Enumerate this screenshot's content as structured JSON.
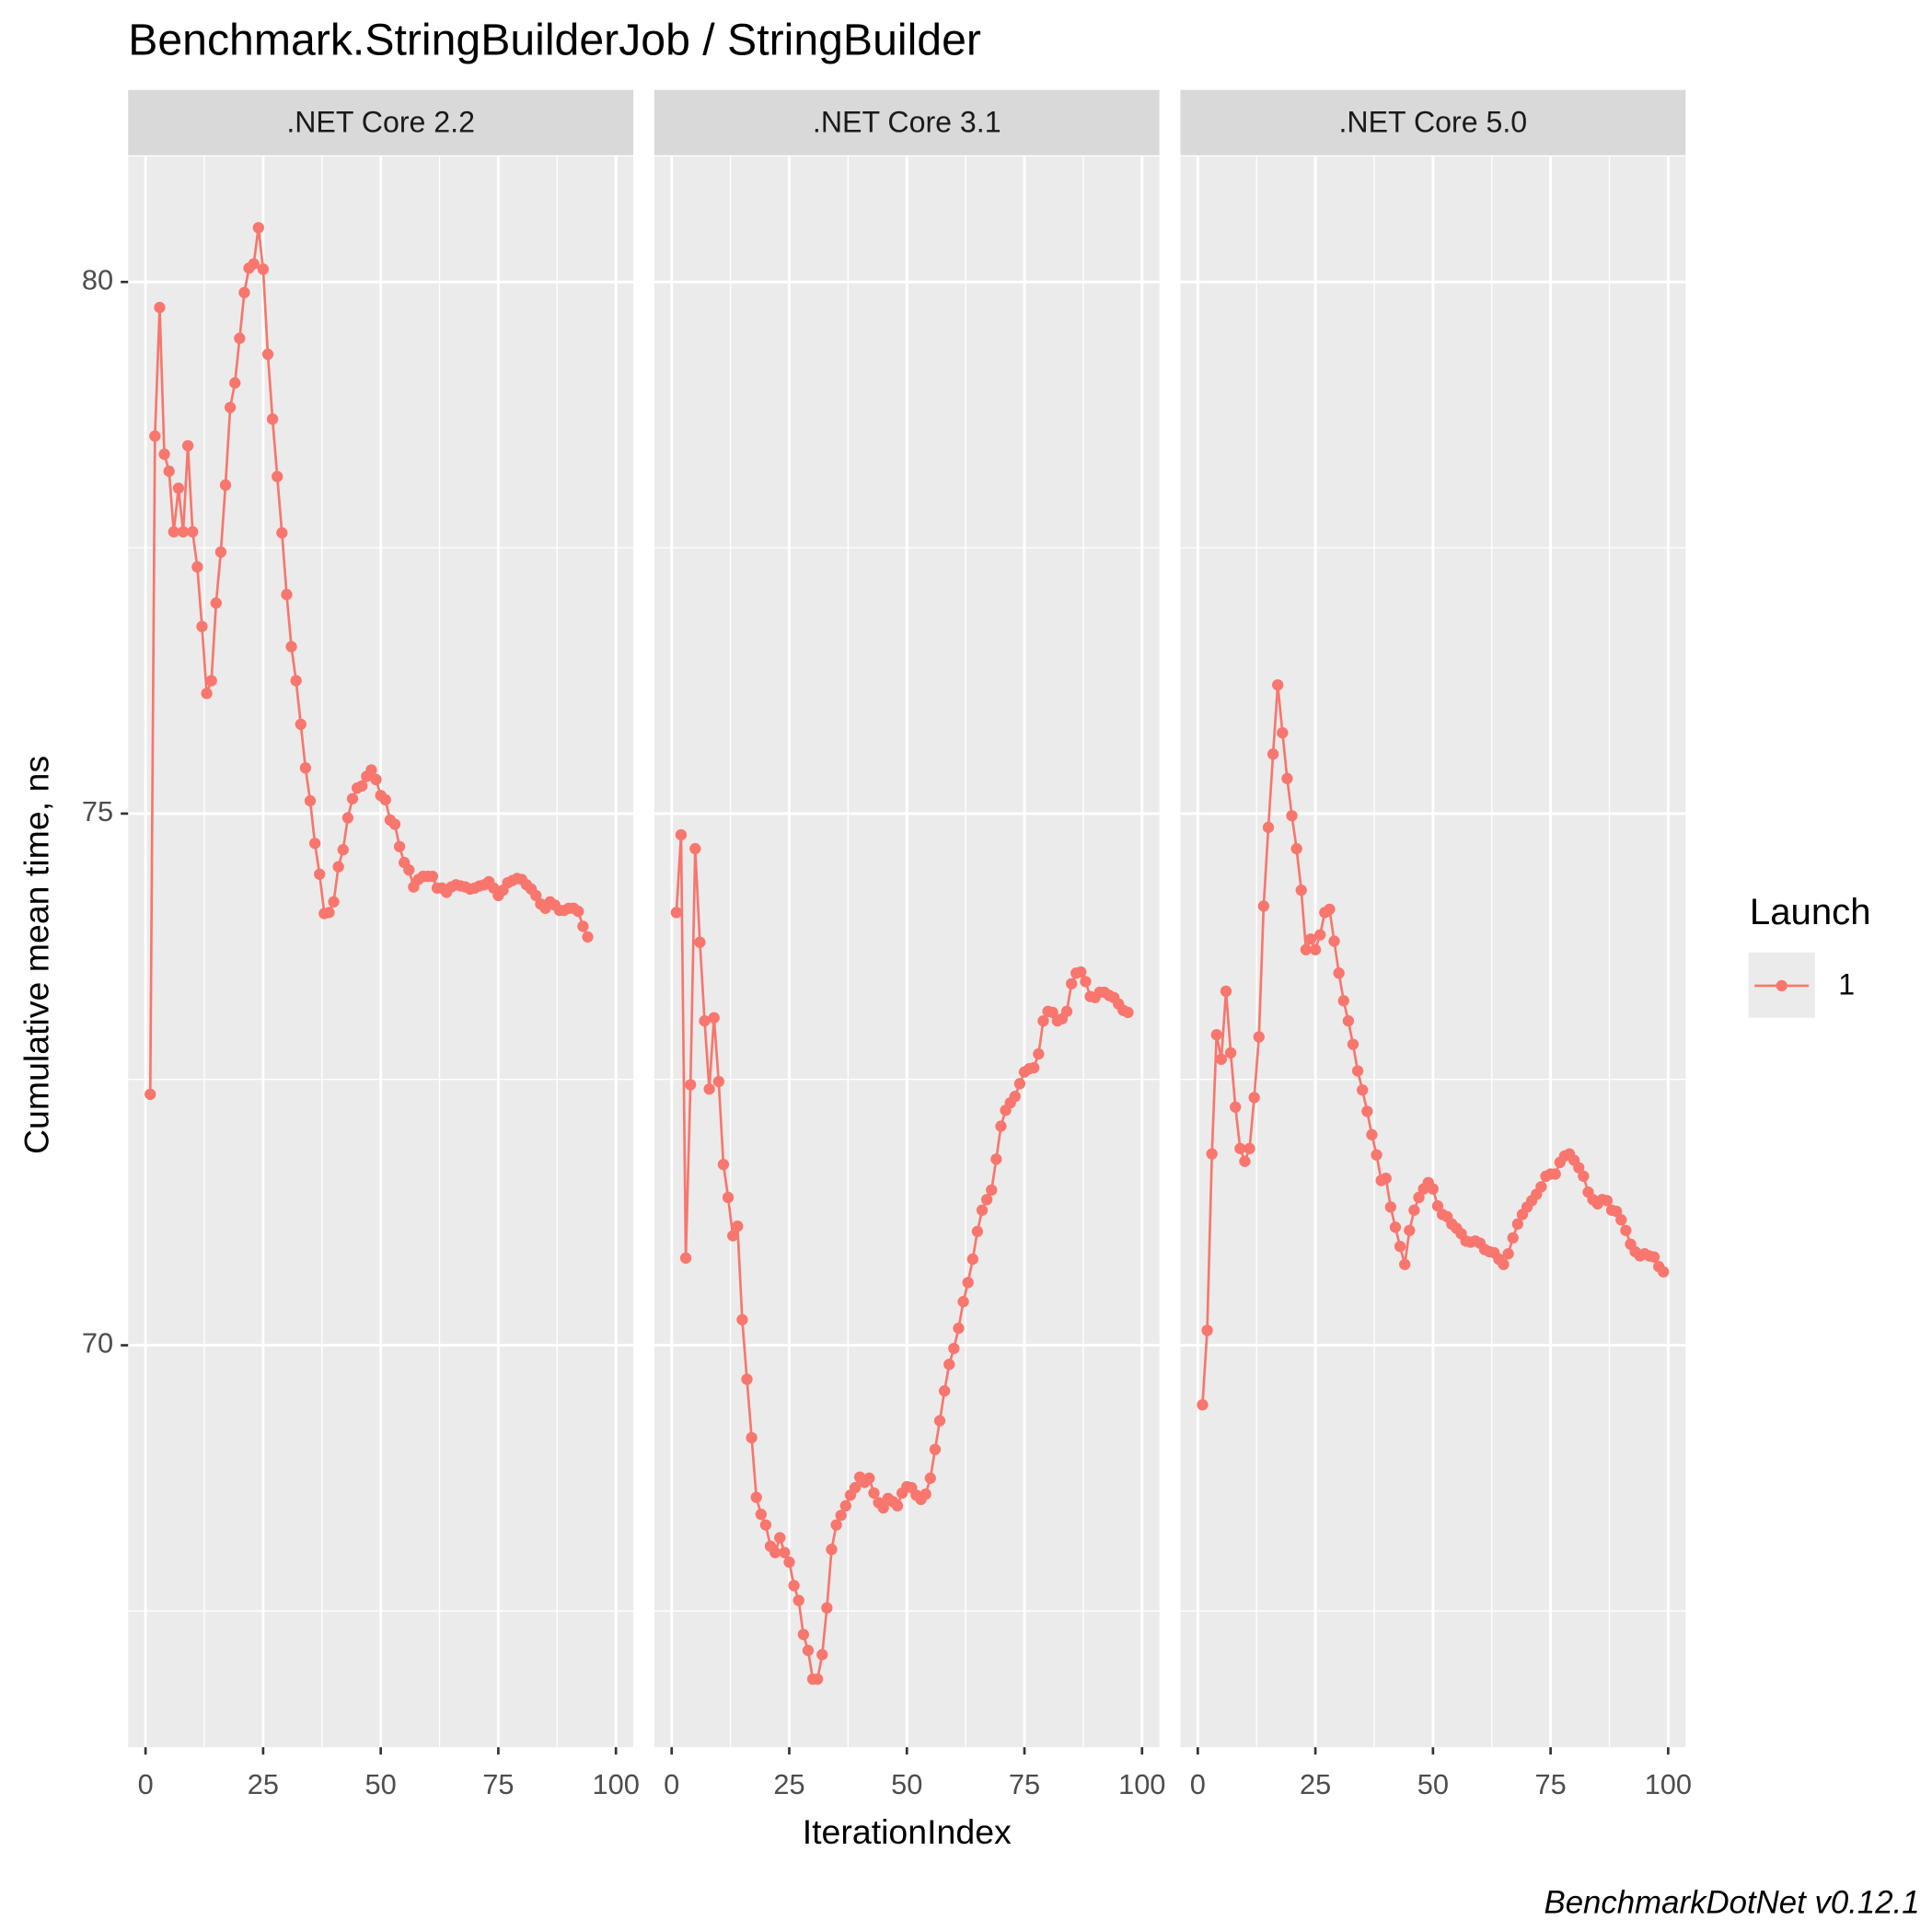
{
  "chart_data": {
    "type": "line",
    "title": "Benchmark.StringBuilderJob / StringBuilder",
    "x_label": "IterationIndex",
    "y_label": "Cumulative mean time, ns",
    "caption": "BenchmarkDotNet v0.12.1",
    "legend_title": "Launch",
    "xlim": [
      -3.7,
      103.7
    ],
    "xticks": [
      0,
      25,
      50,
      75,
      100
    ],
    "xminor": [
      12.5,
      37.5,
      62.5,
      87.5
    ],
    "ylim": [
      66.22,
      81.18
    ],
    "yticks": [
      70,
      75,
      80
    ],
    "yminor": [
      67.5,
      72.5,
      77.5
    ],
    "grid": true,
    "facets": [
      {
        "name": ".NET Core 2.2",
        "x": [
          1,
          2,
          3,
          4,
          5,
          6,
          7,
          8,
          9,
          10,
          11,
          12,
          13,
          14,
          15,
          16,
          17,
          18,
          19,
          20,
          21,
          22,
          23,
          24,
          25,
          26,
          27,
          28,
          29,
          30,
          31,
          32,
          33,
          34,
          35,
          36,
          37,
          38,
          39,
          40,
          41,
          42,
          43,
          44,
          45,
          46,
          47,
          48,
          49,
          50,
          51,
          52,
          53,
          54,
          55,
          56,
          57,
          58,
          59,
          60,
          61,
          62,
          63,
          64,
          65,
          66,
          67,
          68,
          69,
          70,
          71,
          72,
          73,
          74,
          75,
          76,
          77,
          78,
          79,
          80,
          81,
          82,
          83,
          84,
          85,
          86,
          87,
          88,
          89,
          90,
          91,
          92,
          93,
          94
        ],
        "series": [
          {
            "name": "1",
            "color": "#F8766D",
            "values": [
              72.36,
              78.55,
              79.76,
              78.38,
              78.22,
              77.65,
              78.06,
              77.65,
              78.46,
              77.65,
              77.32,
              76.76,
              76.13,
              76.25,
              76.98,
              77.46,
              78.09,
              78.82,
              79.05,
              79.47,
              79.9,
              80.13,
              80.17,
              80.51,
              80.12,
              79.32,
              78.71,
              78.17,
              77.64,
              77.06,
              76.57,
              76.25,
              75.84,
              75.43,
              75.12,
              74.72,
              74.43,
              74.06,
              74.07,
              74.17,
              74.5,
              74.66,
              74.96,
              75.14,
              75.24,
              75.26,
              75.35,
              75.41,
              75.32,
              75.17,
              75.13,
              74.94,
              74.9,
              74.69,
              74.54,
              74.47,
              74.31,
              74.38,
              74.41,
              74.41,
              74.41,
              74.3,
              74.3,
              74.26,
              74.31,
              74.33,
              74.32,
              74.31,
              74.29,
              74.3,
              74.32,
              74.33,
              74.36,
              74.3,
              74.23,
              74.28,
              74.35,
              74.37,
              74.39,
              74.38,
              74.33,
              74.29,
              74.23,
              74.15,
              74.11,
              74.17,
              74.14,
              74.09,
              74.09,
              74.11,
              74.11,
              74.08,
              73.94,
              73.84
            ]
          }
        ]
      },
      {
        "name": ".NET Core 3.1",
        "x": [
          1,
          2,
          3,
          4,
          5,
          6,
          7,
          8,
          9,
          10,
          11,
          12,
          13,
          14,
          15,
          16,
          17,
          18,
          19,
          20,
          21,
          22,
          23,
          24,
          25,
          26,
          27,
          28,
          29,
          30,
          31,
          32,
          33,
          34,
          35,
          36,
          37,
          38,
          39,
          40,
          41,
          42,
          43,
          44,
          45,
          46,
          47,
          48,
          49,
          50,
          51,
          52,
          53,
          54,
          55,
          56,
          57,
          58,
          59,
          60,
          61,
          62,
          63,
          64,
          65,
          66,
          67,
          68,
          69,
          70,
          71,
          72,
          73,
          74,
          75,
          76,
          77,
          78,
          79,
          80,
          81,
          82,
          83,
          84,
          85,
          86,
          87,
          88,
          89,
          90,
          91,
          92,
          93,
          94,
          95,
          96,
          97
        ],
        "series": [
          {
            "name": "1",
            "color": "#F8766D",
            "values": [
              74.07,
              74.8,
              70.82,
              72.45,
              74.67,
              73.79,
              73.05,
              72.41,
              73.08,
              72.48,
              71.7,
              71.39,
              71.03,
              71.12,
              70.24,
              69.68,
              69.13,
              68.57,
              68.41,
              68.31,
              68.11,
              68.05,
              68.19,
              68.05,
              67.96,
              67.74,
              67.6,
              67.28,
              67.13,
              66.86,
              66.86,
              67.09,
              67.53,
              68.08,
              68.31,
              68.4,
              68.49,
              68.59,
              68.66,
              68.76,
              68.71,
              68.75,
              68.61,
              68.52,
              68.47,
              68.56,
              68.53,
              68.49,
              68.61,
              68.67,
              68.66,
              68.59,
              68.55,
              68.6,
              68.75,
              69.02,
              69.29,
              69.57,
              69.82,
              69.97,
              70.16,
              70.41,
              70.59,
              70.81,
              71.07,
              71.27,
              71.37,
              71.46,
              71.75,
              72.06,
              72.21,
              72.28,
              72.34,
              72.46,
              72.57,
              72.6,
              72.61,
              72.74,
              73.05,
              73.14,
              73.13,
              73.05,
              73.07,
              73.14,
              73.4,
              73.5,
              73.51,
              73.42,
              73.28,
              73.27,
              73.32,
              73.32,
              73.29,
              73.27,
              73.21,
              73.15,
              73.13
            ]
          }
        ]
      },
      {
        "name": ".NET Core 5.0",
        "x": [
          1,
          2,
          3,
          4,
          5,
          6,
          7,
          8,
          9,
          10,
          11,
          12,
          13,
          14,
          15,
          16,
          17,
          18,
          19,
          20,
          21,
          22,
          23,
          24,
          25,
          26,
          27,
          28,
          29,
          30,
          31,
          32,
          33,
          34,
          35,
          36,
          37,
          38,
          39,
          40,
          41,
          42,
          43,
          44,
          45,
          46,
          47,
          48,
          49,
          50,
          51,
          52,
          53,
          54,
          55,
          56,
          57,
          58,
          59,
          60,
          61,
          62,
          63,
          64,
          65,
          66,
          67,
          68,
          69,
          70,
          71,
          72,
          73,
          74,
          75,
          76,
          77,
          78,
          79,
          80,
          81,
          82,
          83,
          84,
          85,
          86,
          87,
          88,
          89,
          90,
          91,
          92,
          93,
          94,
          95,
          96,
          97,
          98,
          99
        ],
        "series": [
          {
            "name": "1",
            "color": "#F8766D",
            "values": [
              69.44,
              70.14,
              71.8,
              72.92,
              72.69,
              73.33,
              72.75,
              72.24,
              71.85,
              71.73,
              71.85,
              72.33,
              72.9,
              74.13,
              74.87,
              75.56,
              76.21,
              75.76,
              75.33,
              74.98,
              74.67,
              74.28,
              73.72,
              73.82,
              73.72,
              73.86,
              74.07,
              74.1,
              73.8,
              73.5,
              73.24,
              73.05,
              72.83,
              72.58,
              72.4,
              72.2,
              71.98,
              71.79,
              71.55,
              71.57,
              71.3,
              71.11,
              70.93,
              70.76,
              71.08,
              71.27,
              71.39,
              71.47,
              71.53,
              71.47,
              71.31,
              71.23,
              71.21,
              71.14,
              71.1,
              71.05,
              70.98,
              70.97,
              70.98,
              70.96,
              70.9,
              70.88,
              70.87,
              70.81,
              70.76,
              70.86,
              71.01,
              71.14,
              71.23,
              71.3,
              71.36,
              71.42,
              71.49,
              71.59,
              71.61,
              71.61,
              71.72,
              71.78,
              71.8,
              71.74,
              71.67,
              71.59,
              71.44,
              71.37,
              71.33,
              71.37,
              71.36,
              71.27,
              71.26,
              71.18,
              71.08,
              70.95,
              70.88,
              70.84,
              70.86,
              70.84,
              70.83,
              70.74,
              70.69
            ]
          }
        ]
      }
    ]
  }
}
